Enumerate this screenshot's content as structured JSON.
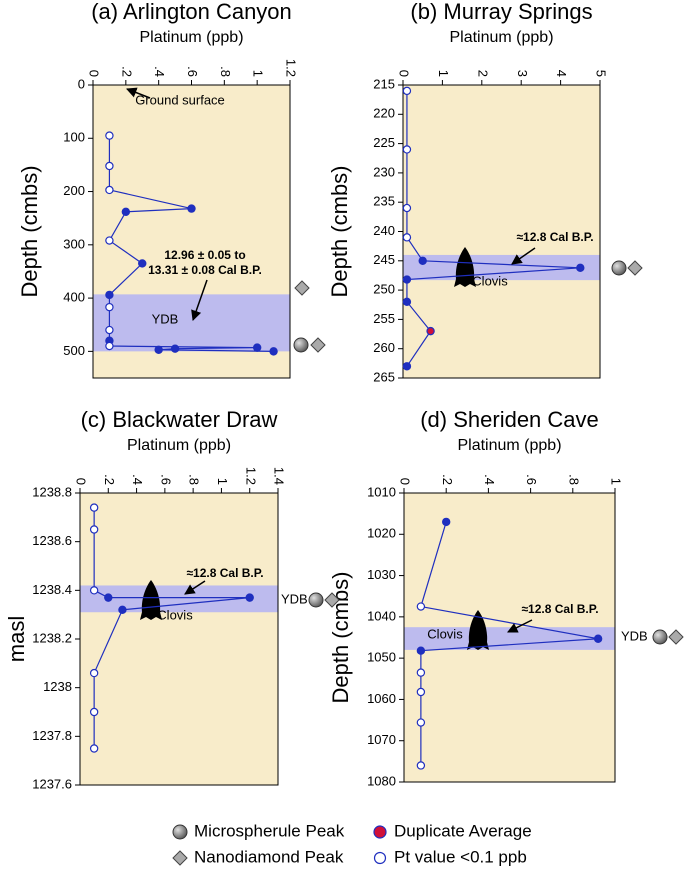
{
  "chart_data": [
    {
      "type": "line",
      "title": "(a) Arlington Canyon",
      "x_label": "Platinum (ppb)",
      "y_label": "Depth (cmbs)",
      "xlim": [
        0,
        1.2
      ],
      "xticks": [
        0,
        {
          "value": 0.2,
          "label": ".2"
        },
        {
          "value": 0.4,
          "label": ".4"
        },
        {
          "value": 0.6,
          "label": ".6"
        },
        {
          "value": 0.8,
          "label": ".8"
        },
        1,
        {
          "value": 1.2,
          "label": "1.2"
        }
      ],
      "ylim": [
        0,
        550
      ],
      "yticks": [
        0,
        100,
        200,
        300,
        400,
        500
      ],
      "invert_y": true,
      "band": [
        393,
        500
      ],
      "color": "#1f2fbf",
      "values": [
        0.1,
        0.1,
        0.1,
        0.6,
        0.2,
        0.1,
        0.3,
        0.1,
        0.1,
        0.1,
        0.1,
        0.1,
        1.0,
        0.5,
        0.4,
        1.1
      ],
      "depth": [
        95,
        152,
        197,
        232,
        238,
        292,
        335,
        394,
        417,
        460,
        480,
        490,
        493,
        495,
        497,
        500
      ],
      "markers": [
        "open",
        "open",
        "open",
        "filled",
        "filled",
        "open",
        "filled",
        "filled",
        "open",
        "open",
        "filled",
        "open",
        "filled",
        "filled",
        "filled",
        "filled"
      ],
      "annotations": [
        "Ground surface",
        "12.96 ± 0.05 to",
        "13.31 ± 0.08 Cal B.P.",
        "YDB"
      ]
    },
    {
      "type": "line",
      "title": "(b) Murray Springs",
      "x_label": "Platinum (ppb)",
      "y_label": "Depth (cmbs)",
      "xlim": [
        0,
        5
      ],
      "xticks": [
        0,
        1,
        2,
        3,
        4,
        5
      ],
      "ylim": [
        215,
        265
      ],
      "yticks": [
        215,
        220,
        225,
        230,
        235,
        240,
        245,
        250,
        255,
        260,
        265
      ],
      "invert_y": true,
      "band": [
        244,
        248.3
      ],
      "color": "#1f2fbf",
      "values": [
        0.1,
        0.1,
        0.1,
        0.1,
        0.5,
        4.5,
        0.1,
        0.1,
        0.7,
        0.1
      ],
      "depth": [
        216,
        226,
        236,
        241,
        245,
        246.2,
        248.2,
        252,
        257,
        263
      ],
      "markers": [
        "open",
        "open",
        "open",
        "open",
        "filled",
        "filled",
        "filled",
        "filled",
        "duplicate",
        "filled"
      ],
      "annotations": [
        "≈12.8 Cal B.P.",
        "Clovis"
      ]
    },
    {
      "type": "line",
      "title": "(c) Blackwater Draw",
      "x_label": "Platinum (ppb)",
      "y_label": "masl",
      "xlim": [
        0,
        1.4
      ],
      "xticks": [
        0,
        {
          "value": 0.2,
          "label": ".2"
        },
        {
          "value": 0.4,
          "label": ".4"
        },
        {
          "value": 0.6,
          "label": ".6"
        },
        {
          "value": 0.8,
          "label": ".8"
        },
        1,
        {
          "value": 1.2,
          "label": "1.2"
        },
        {
          "value": 1.4,
          "label": "1.4"
        }
      ],
      "ylim": [
        1237.6,
        1238.8
      ],
      "yticks": [
        1237.6,
        1237.8,
        1238,
        1238.2,
        1238.4,
        1238.6,
        1238.8
      ],
      "invert_y": false,
      "band": [
        1238.31,
        1238.42
      ],
      "color": "#1f2fbf",
      "values": [
        0.1,
        0.1,
        0.1,
        0.2,
        1.2,
        0.3,
        0.1,
        0.1,
        0.1
      ],
      "depth": [
        1238.74,
        1238.65,
        1238.4,
        1238.37,
        1238.37,
        1238.32,
        1238.06,
        1237.9,
        1237.75
      ],
      "markers": [
        "open",
        "open",
        "open",
        "filled",
        "filled",
        "filled",
        "open",
        "open",
        "open"
      ],
      "annotations": [
        "≈12.8 Cal B.P.",
        "Clovis",
        "YDB"
      ]
    },
    {
      "type": "line",
      "title": "(d) Sheriden Cave",
      "x_label": "Platinum (ppb)",
      "y_label": "Depth (cmbs)",
      "xlim": [
        0,
        1
      ],
      "xticks": [
        0,
        {
          "value": 0.2,
          "label": ".2"
        },
        {
          "value": 0.4,
          "label": ".4"
        },
        {
          "value": 0.6,
          "label": ".6"
        },
        {
          "value": 0.8,
          "label": ".8"
        },
        1
      ],
      "ylim": [
        1010,
        1080
      ],
      "yticks": [
        1010,
        1020,
        1030,
        1040,
        1050,
        1060,
        1070,
        1080
      ],
      "invert_y": true,
      "band": [
        1042.5,
        1048
      ],
      "color": "#1f2fbf",
      "values": [
        0.2,
        0.08,
        0.92,
        0.08,
        0.08,
        0.08,
        0.08,
        0.08
      ],
      "depth": [
        1017,
        1037.5,
        1045.3,
        1048.2,
        1053.5,
        1058.2,
        1065.6,
        1076
      ],
      "markers": [
        "filled",
        "open",
        "filled",
        "filled",
        "open",
        "open",
        "open",
        "open"
      ],
      "annotations": [
        "≈12.8 Cal B.P.",
        "Clovis",
        "YDB"
      ]
    }
  ],
  "legend": [
    {
      "label": "Microspherule Peak",
      "marker": "sphere"
    },
    {
      "label": "Duplicate Average",
      "marker": "duplicate"
    },
    {
      "label": "Nanodiamond Peak",
      "marker": "diamond"
    },
    {
      "label": "Pt value <0.1 ppb",
      "marker": "open"
    }
  ]
}
